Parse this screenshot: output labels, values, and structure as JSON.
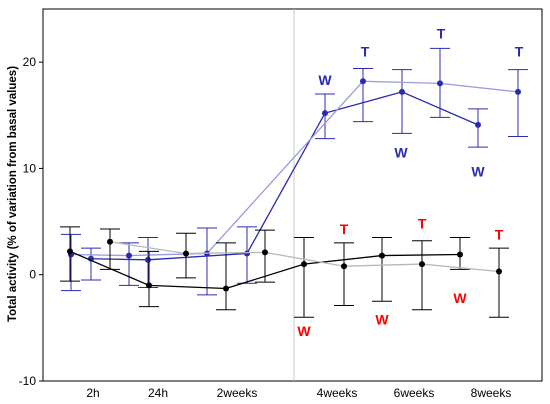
{
  "chart_data": {
    "type": "line",
    "ylabel": "Total activity (% of variation from basal values)",
    "xlabel": "",
    "ylim": [
      -10,
      25
    ],
    "y_ticks": [
      -10,
      0,
      10,
      20
    ],
    "x_tick_labels": [
      "2h",
      "24h",
      "2weeks",
      "4weeks",
      "6weeks",
      "8weeks"
    ],
    "grid": "off",
    "legend": "none",
    "reference_line_between": [
      "2weeks",
      "4weeks"
    ],
    "colors": {
      "blue": "#2b2bb0",
      "light_blue": "#9a9ae0",
      "black": "#000000",
      "light_gray": "#b8b8b8",
      "red": "#ff0000"
    },
    "series": [
      {
        "color": "blue",
        "line_color": "blue",
        "points": [
          {
            "x": "2h",
            "y": 1.5,
            "err_low": -0.5,
            "err_high": 2.5
          },
          {
            "x": "24h",
            "y": 1.4,
            "err_low": -1.2,
            "err_high": 3.5
          },
          {
            "x": "2weeks",
            "y": 2.0,
            "err_low": -0.8,
            "err_high": 4.5
          },
          {
            "x": "4weeks",
            "y": 15.2,
            "err_low": 12.8,
            "err_high": 17.0
          },
          {
            "x": "6weeks",
            "y": 17.2,
            "err_low": 13.3,
            "err_high": 19.3
          },
          {
            "x": "8weeks",
            "y": 14.1,
            "err_low": 12.0,
            "err_high": 15.6
          }
        ]
      },
      {
        "color": "blue",
        "line_color": "light_blue",
        "points": [
          {
            "x": "2h",
            "y": 1.9,
            "err_low": -1.5,
            "err_high": 3.8
          },
          {
            "x": "24h",
            "y": 1.8,
            "err_low": -1.0,
            "err_high": 3.0
          },
          {
            "x": "2weeks",
            "y": 2.0,
            "err_low": -1.9,
            "err_high": 4.4
          },
          {
            "x": "4weeks",
            "y": 18.2,
            "err_low": 14.4,
            "err_high": 19.4
          },
          {
            "x": "6weeks",
            "y": 18.0,
            "err_low": 14.8,
            "err_high": 21.3
          },
          {
            "x": "8weeks",
            "y": 17.2,
            "err_low": 13.0,
            "err_high": 19.3
          }
        ]
      },
      {
        "color": "black",
        "line_color": "black",
        "points": [
          {
            "x": "2h",
            "y": 2.2,
            "err_low": -0.6,
            "err_high": 4.5
          },
          {
            "x": "24h",
            "y": -1.0,
            "err_low": -3.0,
            "err_high": 2.2
          },
          {
            "x": "2weeks",
            "y": -1.3,
            "err_low": -3.3,
            "err_high": 3.0
          },
          {
            "x": "4weeks",
            "y": 1.0,
            "err_low": -4.0,
            "err_high": 3.5
          },
          {
            "x": "6weeks",
            "y": 1.8,
            "err_low": -2.5,
            "err_high": 3.5
          },
          {
            "x": "8weeks",
            "y": 1.9,
            "err_low": 0.5,
            "err_high": 3.5
          }
        ]
      },
      {
        "color": "black",
        "line_color": "light_gray",
        "points": [
          {
            "x": "2h",
            "y": 3.1,
            "err_low": 0.5,
            "err_high": 4.3
          },
          {
            "x": "24h",
            "y": 2.0,
            "err_low": -0.3,
            "err_high": 3.9
          },
          {
            "x": "2weeks",
            "y": 2.1,
            "err_low": -0.7,
            "err_high": 4.2
          },
          {
            "x": "4weeks",
            "y": 0.8,
            "err_low": -2.9,
            "err_high": 3.0
          },
          {
            "x": "6weeks",
            "y": 1.0,
            "err_low": -3.3,
            "err_high": 3.2
          },
          {
            "x": "8weeks",
            "y": 0.3,
            "err_low": -4.0,
            "err_high": 2.5
          }
        ]
      }
    ],
    "annotations": [
      {
        "text": "W",
        "x": "4weeks",
        "y": 18.3,
        "color": "blue"
      },
      {
        "text": "T",
        "x": "4weeks",
        "y": 21.0,
        "color": "blue"
      },
      {
        "text": "W",
        "x": "6weeks",
        "y": 11.5,
        "color": "blue"
      },
      {
        "text": "T",
        "x": "6weeks",
        "y": 22.7,
        "color": "blue"
      },
      {
        "text": "W",
        "x": "8weeks",
        "y": 9.7,
        "color": "blue"
      },
      {
        "text": "T",
        "x": "8weeks",
        "y": 21.0,
        "color": "blue"
      },
      {
        "text": "W",
        "x": "4weeks",
        "y": -5.3,
        "color": "red"
      },
      {
        "text": "T",
        "x": "4weeks",
        "y": 4.3,
        "color": "red"
      },
      {
        "text": "W",
        "x": "6weeks",
        "y": -4.2,
        "color": "red"
      },
      {
        "text": "T",
        "x": "6weeks",
        "y": 4.8,
        "color": "red"
      },
      {
        "text": "W",
        "x": "8weeks",
        "y": -2.2,
        "color": "red"
      },
      {
        "text": "T",
        "x": "8weeks",
        "y": 3.8,
        "color": "red"
      }
    ]
  }
}
